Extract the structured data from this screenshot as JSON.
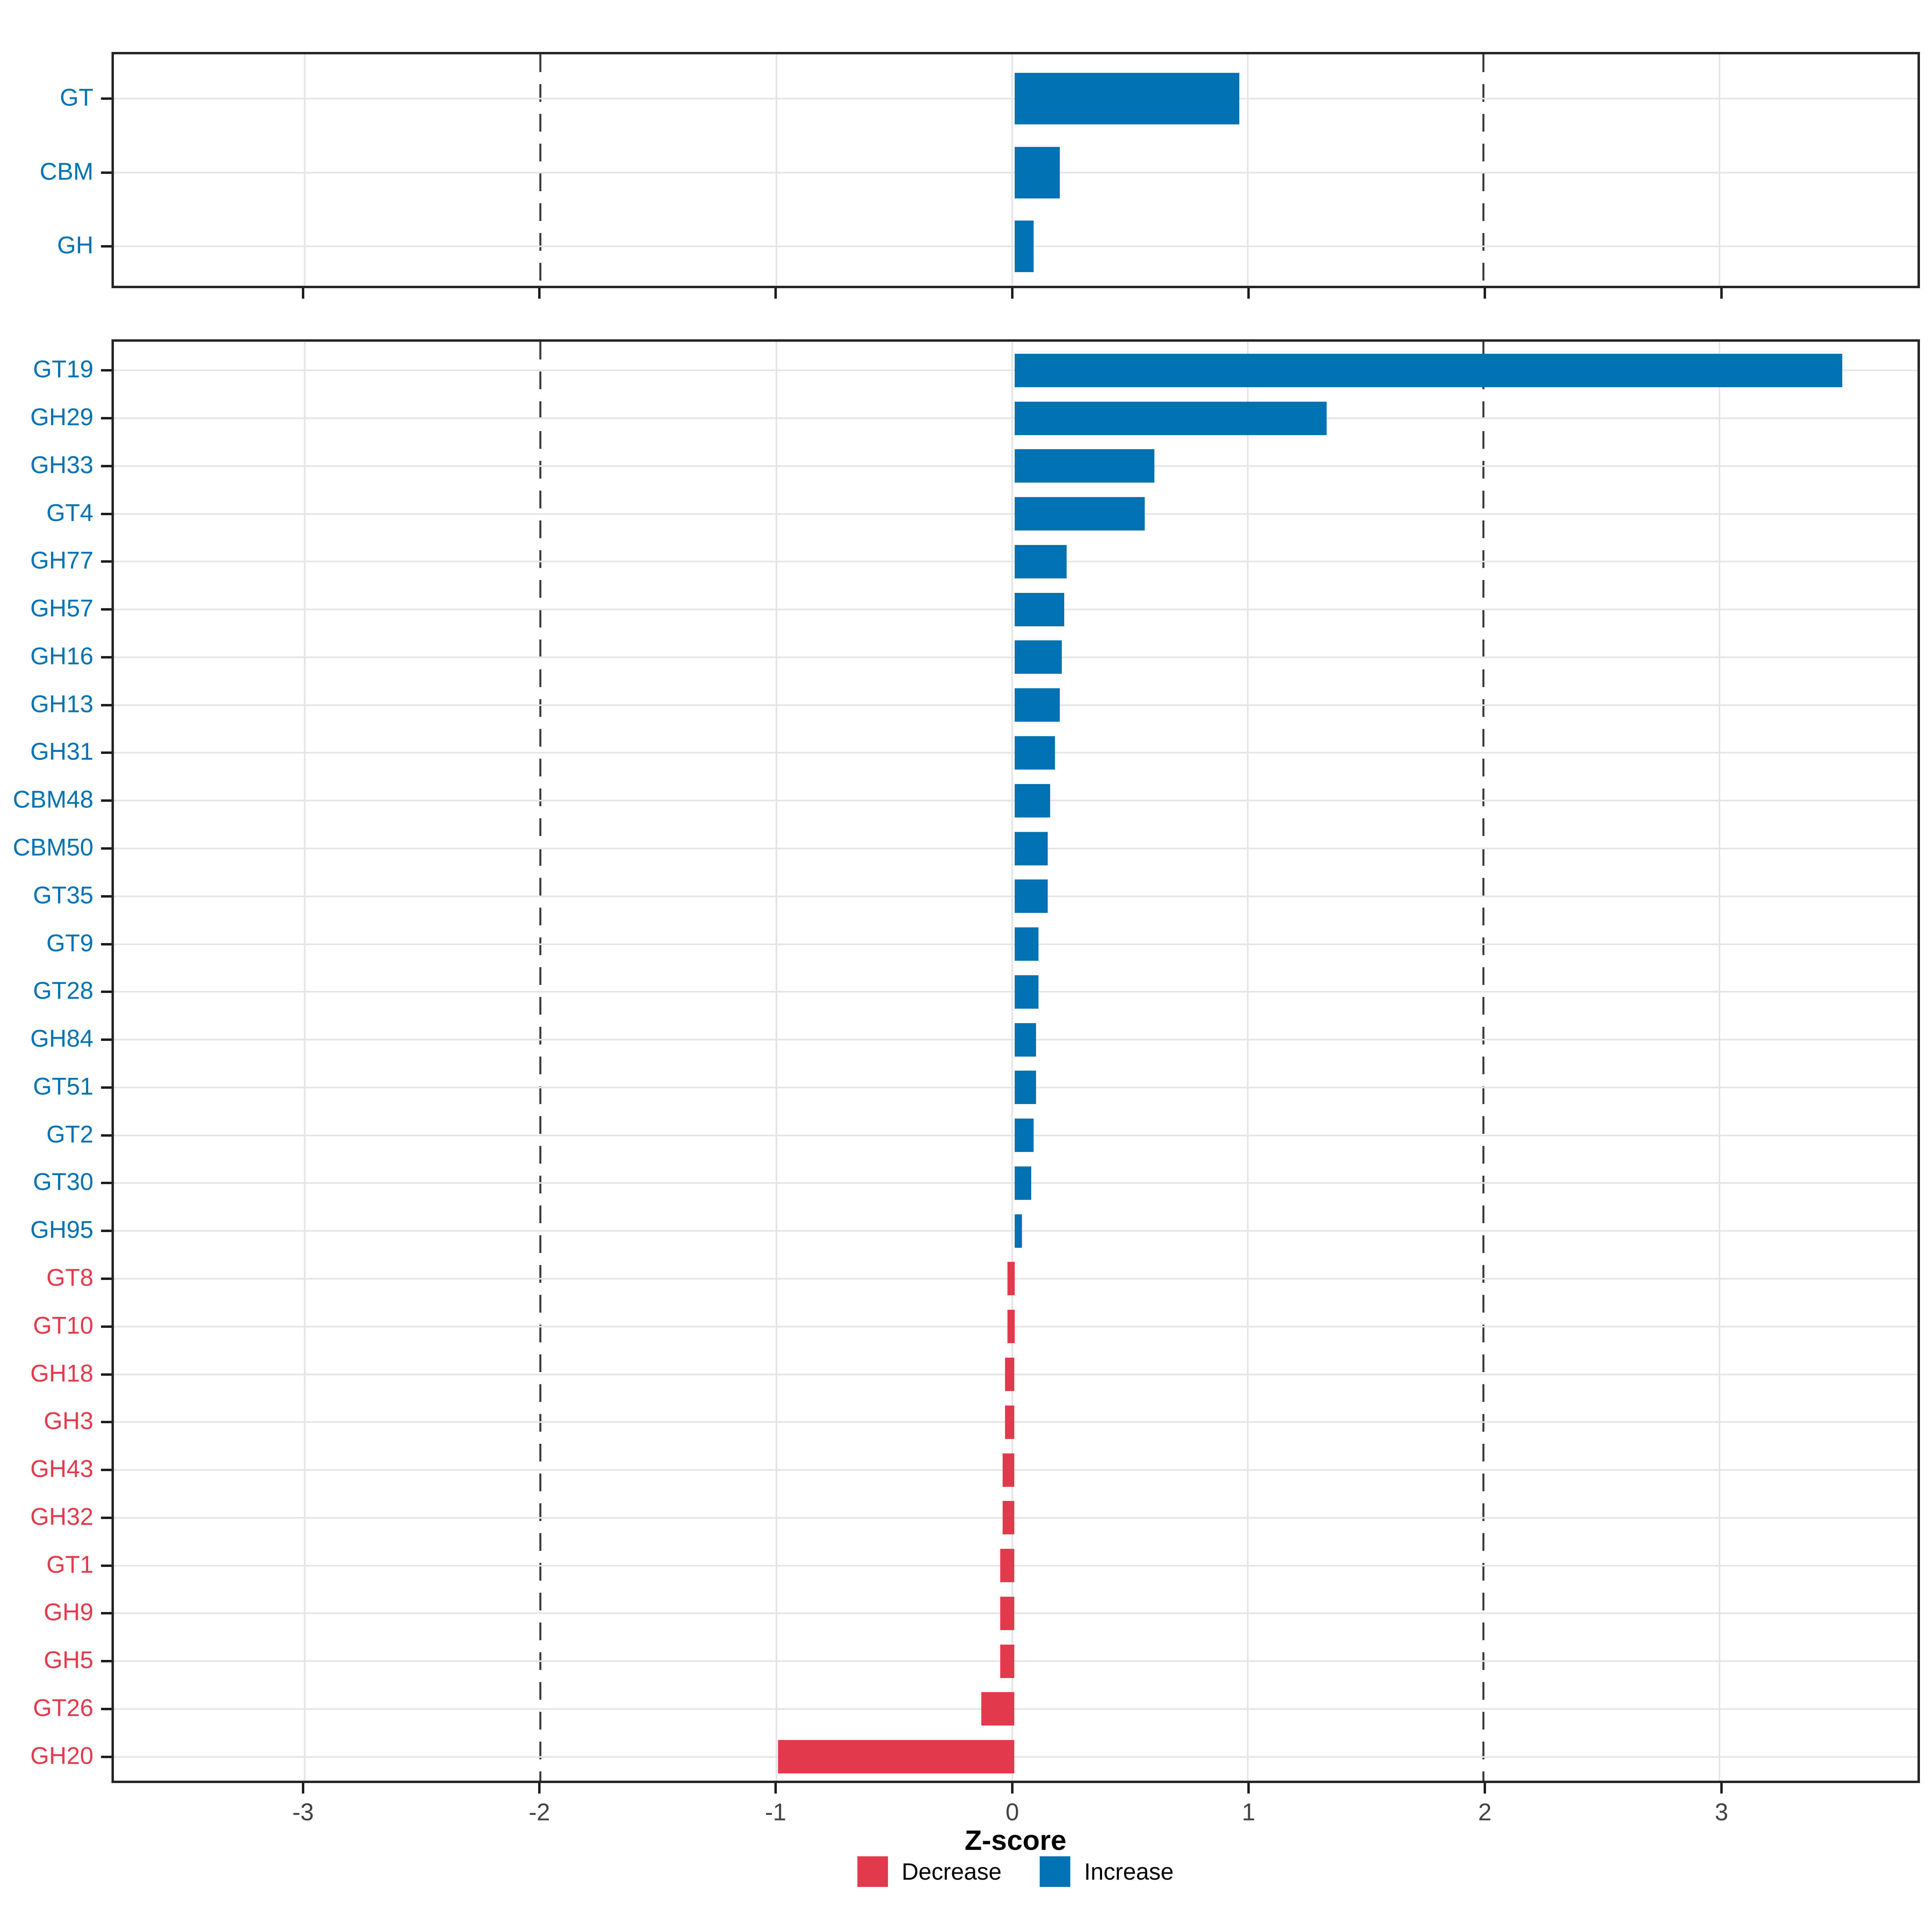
{
  "chart_data": {
    "type": "bar",
    "orientation": "horizontal",
    "xlabel": "Z-score",
    "x_ticks": [
      -3,
      -2,
      -1,
      0,
      1,
      2,
      3
    ],
    "xlim": [
      -3.81,
      3.84
    ],
    "dashed_guides_x": [
      -2,
      2
    ],
    "grid": "light gray major x gridlines and per-category row gridlines; full panel border",
    "legend_position": "bottom-center",
    "colors": {
      "increase": "#0072B2",
      "decrease": "#E43B4C",
      "gridline": "#E4E4E4",
      "dashed_guide": "#3C3C3C",
      "panel_border": "#252525",
      "tick": "#1C1C1C",
      "tick_label": "#424242",
      "axis_title": "#000000"
    },
    "legend": [
      {
        "label": "Decrease",
        "color": "#E43B4C"
      },
      {
        "label": "Increase",
        "color": "#0072B2"
      }
    ],
    "panels": [
      {
        "name": "enzyme-classes",
        "categories": [
          "GT",
          "CBM",
          "GH"
        ],
        "values": [
          0.95,
          0.19,
          0.08
        ]
      },
      {
        "name": "enzyme-families",
        "categories": [
          "GT19",
          "GH29",
          "GH33",
          "GT4",
          "GH77",
          "GH57",
          "GH16",
          "GH13",
          "GH31",
          "CBM48",
          "CBM50",
          "GT35",
          "GT9",
          "GT28",
          "GH84",
          "GT51",
          "GT2",
          "GT30",
          "GH95",
          "GT8",
          "GT10",
          "GH18",
          "GH3",
          "GH43",
          "GH32",
          "GT1",
          "GH9",
          "GH5",
          "GT26",
          "GH20"
        ],
        "values": [
          3.5,
          1.32,
          0.59,
          0.55,
          0.22,
          0.21,
          0.2,
          0.19,
          0.17,
          0.15,
          0.14,
          0.14,
          0.1,
          0.1,
          0.09,
          0.09,
          0.08,
          0.07,
          0.03,
          -0.03,
          -0.03,
          -0.04,
          -0.04,
          -0.05,
          -0.05,
          -0.06,
          -0.06,
          -0.06,
          -0.14,
          -1.0
        ]
      }
    ]
  }
}
